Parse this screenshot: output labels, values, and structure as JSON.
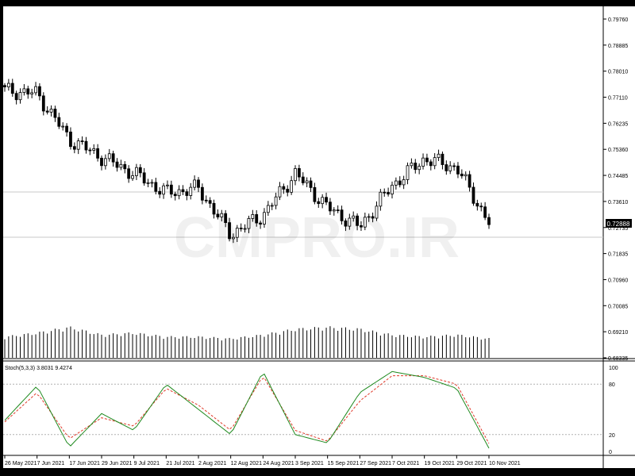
{
  "watermark": "CMPRO.IR",
  "price_panel": {
    "current_price": "0.72888",
    "price_axis_labels": [
      "0.79760",
      "0.78885",
      "0.78010",
      "0.77110",
      "0.76235",
      "0.75360",
      "0.74485",
      "0.73610",
      "0.72735",
      "0.71835",
      "0.70960",
      "0.70085",
      "0.69210",
      "0.68335"
    ]
  },
  "stoch_panel": {
    "label": "Stoch(5,3,3) 3.8031 9.4274",
    "axis_labels": [
      "100",
      "80",
      "20",
      "0"
    ]
  },
  "time_axis_labels": [
    "26 May 2021",
    "7 Jun 2021",
    "17 Jun 2021",
    "29 Jun 2021",
    "9 Jul 2021",
    "21 Jul 2021",
    "2 Aug 2021",
    "12 Aug 2021",
    "24 Aug 2021",
    "3 Sep 2021",
    "15 Sep 2021",
    "27 Sep 2021",
    "7 Oct 2021",
    "19 Oct 2021",
    "29 Oct 2021",
    "10 Nov 2021"
  ],
  "colors": {
    "background": "#ffffff",
    "frame": "#000000",
    "candle_bull": "#ffffff",
    "candle_bear": "#000000",
    "stoch_main": "#1f8a1f",
    "stoch_signal": "#e03a2a",
    "level_line": "#c8c8c8"
  },
  "chart_data": {
    "type": "candlestick",
    "x": [
      "26 May 2021",
      "7 Jun 2021",
      "17 Jun 2021",
      "29 Jun 2021",
      "9 Jul 2021",
      "21 Jul 2021",
      "2 Aug 2021",
      "12 Aug 2021",
      "24 Aug 2021",
      "3 Sep 2021",
      "15 Sep 2021",
      "27 Sep 2021",
      "7 Oct 2021",
      "19 Oct 2021",
      "29 Oct 2021",
      "10 Nov 2021"
    ],
    "close_approx": [
      0.7735,
      0.7725,
      0.757,
      0.751,
      0.7455,
      0.739,
      0.7405,
      0.725,
      0.7315,
      0.7455,
      0.734,
      0.7275,
      0.7415,
      0.7505,
      0.7475,
      0.7289
    ],
    "volume_relative": [
      0.55,
      0.65,
      0.8,
      0.6,
      0.65,
      0.55,
      0.55,
      0.5,
      0.6,
      0.75,
      0.8,
      0.75,
      0.6,
      0.55,
      0.6,
      0.5
    ],
    "stochastic": {
      "params": "5,3,3",
      "main": [
        37,
        78,
        5,
        45,
        25,
        80,
        50,
        20,
        95,
        20,
        10,
        70,
        95,
        88,
        75,
        3.8031
      ],
      "signal": [
        35,
        70,
        15,
        40,
        30,
        75,
        55,
        25,
        90,
        25,
        12,
        60,
        90,
        90,
        80,
        9.4274
      ],
      "levels": [
        80,
        20
      ]
    },
    "price_range": [
      0.68335,
      0.7976
    ]
  }
}
